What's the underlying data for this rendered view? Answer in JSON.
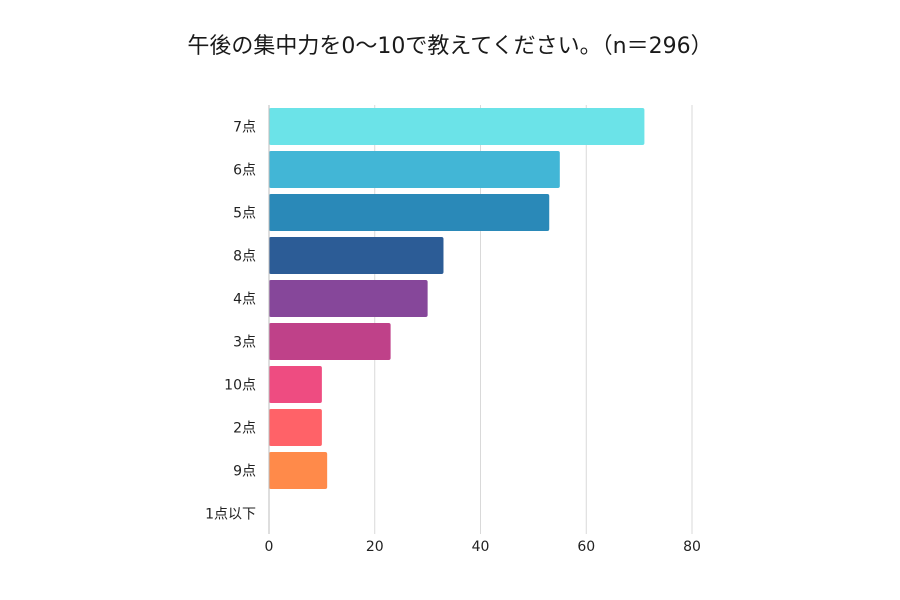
{
  "chart_data": {
    "type": "bar",
    "orientation": "horizontal",
    "title": "午後の集中力を0〜10で教えてください。（n＝296）",
    "xlabel": "",
    "ylabel": "",
    "categories": [
      "7点",
      "6点",
      "5点",
      "8点",
      "4点",
      "3点",
      "10点",
      "2点",
      "9点",
      "1点以下"
    ],
    "values": [
      71,
      55,
      53,
      33,
      30,
      23,
      10,
      10,
      11,
      0
    ],
    "colors": [
      "#6be3e8",
      "#42b6d6",
      "#2a89b8",
      "#2c5c96",
      "#86479a",
      "#bf4189",
      "#ee4c81",
      "#ff6268",
      "#ff8a4a",
      "#cccccc"
    ],
    "xlim": [
      0,
      80
    ],
    "xticks": [
      "0",
      "20",
      "40",
      "60",
      "80"
    ],
    "grid": true,
    "legend": "none"
  }
}
